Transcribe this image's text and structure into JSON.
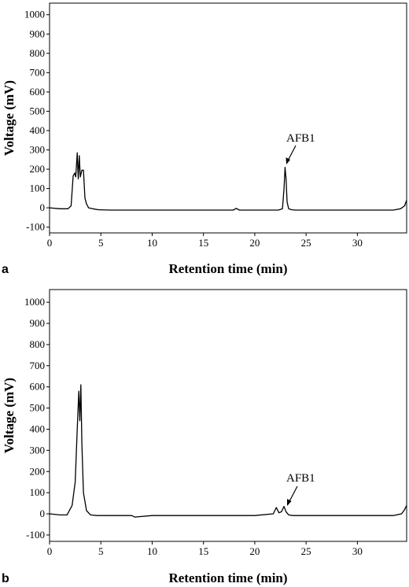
{
  "chart_data": [
    {
      "type": "line",
      "panel_label": "a",
      "xlabel": "Retention time (min)",
      "ylabel": "Voltage (mV)",
      "xlim": [
        0,
        34.8
      ],
      "ylim": [
        -130,
        1060
      ],
      "x_ticks": [
        0,
        5,
        10,
        15,
        20,
        25,
        30
      ],
      "y_ticks": [
        -100,
        0,
        100,
        200,
        300,
        400,
        500,
        600,
        700,
        800,
        900,
        1000
      ],
      "grid": false,
      "series": [
        {
          "x": [
            0,
            1.0,
            1.8,
            2.1,
            2.3,
            2.45,
            2.55,
            2.7,
            2.8,
            2.9,
            3.0,
            3.15,
            3.3,
            3.45,
            3.6,
            3.8,
            4.2,
            4.8,
            6,
            10,
            15,
            17.9,
            18.2,
            18.5,
            20,
            22.3,
            22.7,
            22.85,
            22.95,
            23.05,
            23.15,
            23.3,
            23.6,
            24,
            25,
            30,
            33.5,
            34.2,
            34.6,
            34.8
          ],
          "y": [
            0,
            -5,
            -5,
            10,
            165,
            180,
            160,
            285,
            150,
            270,
            160,
            195,
            195,
            50,
            20,
            0,
            -5,
            -10,
            -12,
            -12,
            -12,
            -12,
            -3,
            -12,
            -12,
            -12,
            -5,
            100,
            210,
            150,
            30,
            -5,
            -10,
            -12,
            -12,
            -12,
            -12,
            -5,
            10,
            40
          ]
        }
      ],
      "annotations": [
        {
          "text": "AFB1",
          "x": 23.0,
          "y": 210
        }
      ]
    },
    {
      "type": "line",
      "panel_label": "b",
      "xlabel": "Retention time (min)",
      "ylabel": "Voltage (mV)",
      "xlim": [
        0,
        34.8
      ],
      "ylim": [
        -130,
        1060
      ],
      "x_ticks": [
        0,
        5,
        10,
        15,
        20,
        25,
        30
      ],
      "y_ticks": [
        -100,
        0,
        100,
        200,
        300,
        400,
        500,
        600,
        700,
        800,
        900,
        1000
      ],
      "grid": false,
      "series": [
        {
          "x": [
            0,
            1.0,
            1.7,
            2.2,
            2.5,
            2.7,
            2.85,
            2.95,
            3.05,
            3.15,
            3.3,
            3.6,
            4.0,
            4.6,
            6,
            8,
            8.3,
            10,
            14,
            16,
            20,
            21.8,
            22.1,
            22.35,
            22.6,
            22.85,
            23.05,
            23.3,
            23.7,
            26,
            30,
            33.5,
            34.3,
            34.6,
            34.8
          ],
          "y": [
            0,
            -5,
            -5,
            40,
            150,
            400,
            580,
            440,
            610,
            330,
            100,
            15,
            -5,
            -8,
            -8,
            -8,
            -15,
            -8,
            -8,
            -8,
            -8,
            0,
            30,
            5,
            10,
            35,
            10,
            -5,
            -8,
            -8,
            -8,
            -8,
            0,
            20,
            40
          ]
        }
      ],
      "annotations": [
        {
          "text": "AFB1",
          "x": 23.0,
          "y": 35
        }
      ]
    }
  ]
}
